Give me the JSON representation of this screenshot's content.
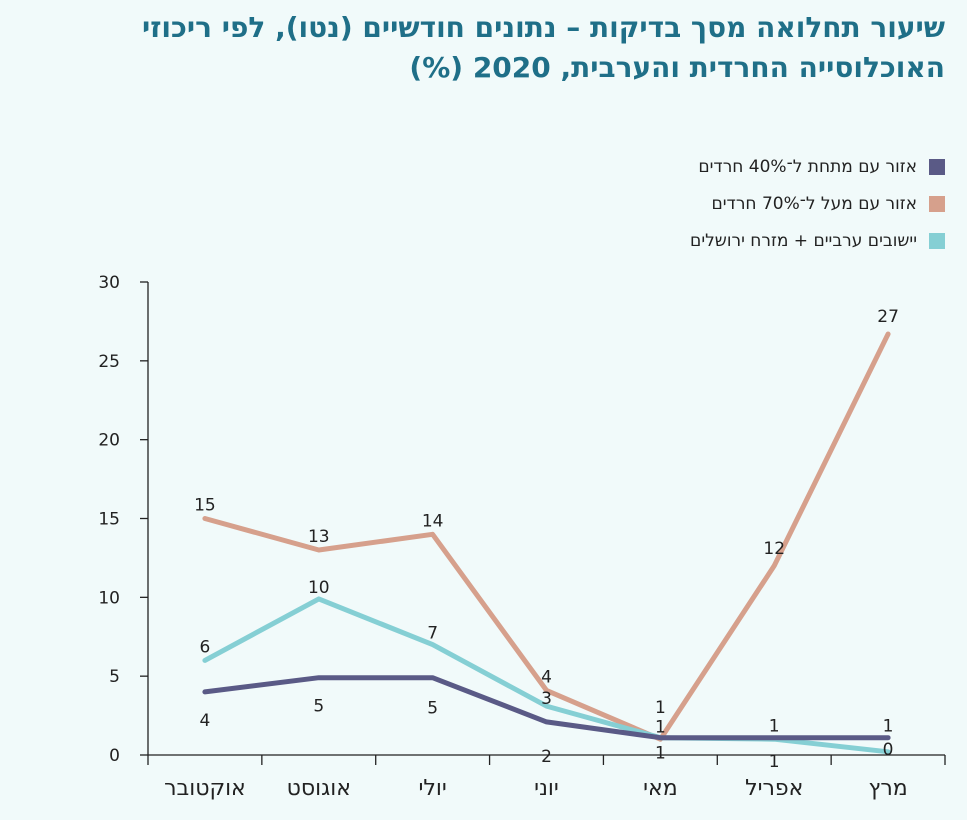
{
  "title": "שיעור תחלואה מסך בדיקות – נתונים חודשיים (נטו), לפי ריכוזי האוכלוסייה החרדית והערבית, 2020 (%)",
  "chart_data": {
    "type": "line",
    "categories": [
      "מרץ",
      "אפריל",
      "מאי",
      "יוני",
      "יולי",
      "אוגוסט",
      "אוקטובר"
    ],
    "ylim": [
      0,
      30
    ],
    "yticks": [
      0,
      5,
      10,
      15,
      20,
      25,
      30
    ],
    "grid": false,
    "legend_position": "top-right",
    "series": [
      {
        "name": "אזור עם מתחת ל־40% חרדים",
        "color": "#5a5a86",
        "values": [
          1.1,
          1.1,
          1.1,
          2.1,
          4.9,
          4.9,
          4.0
        ],
        "labels": [
          "1",
          "1",
          "1",
          "2",
          "5",
          "5",
          "4"
        ]
      },
      {
        "name": "אזור עם מעל ל־70% חרדים",
        "color": "#d6a08c",
        "values": [
          26.7,
          12.0,
          1.0,
          4.1,
          14.0,
          13.0,
          15.0
        ],
        "labels": [
          "27",
          "12",
          "1",
          "4",
          "14",
          "13",
          "15"
        ]
      },
      {
        "name": "יישובים ערביים + מזרח ירושלים",
        "color": "#85cfd4",
        "values": [
          0.2,
          1.0,
          1.1,
          3.1,
          7.0,
          9.9,
          6.0
        ],
        "labels": [
          "0",
          "1",
          "1",
          "3",
          "7",
          "10",
          "6"
        ]
      }
    ]
  }
}
